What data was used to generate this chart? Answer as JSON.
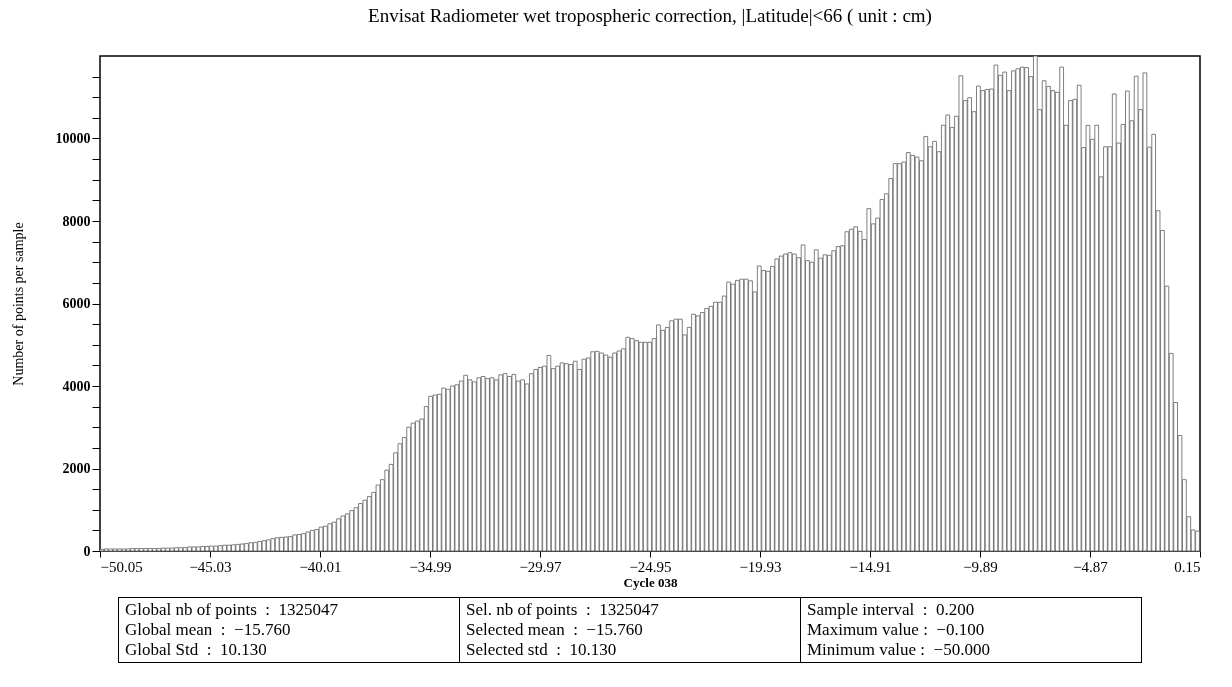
{
  "chart_data": {
    "type": "histogram",
    "title": "Envisat Radiometer wet tropospheric correction, |Latitude|<66  ( unit : cm)",
    "xlabel": "Cycle 038",
    "ylabel": "Number of points per sample",
    "color": "#606060",
    "bins": [
      -50.05,
      -49.85,
      -49.65,
      -49.45,
      -49.25,
      -49.05,
      -48.85,
      -48.65,
      -48.45,
      -48.25,
      -48.05,
      -47.85,
      -47.65,
      -47.45,
      -47.25,
      -47.05,
      -46.85,
      -46.65,
      -46.45,
      -46.25,
      -46.05,
      -45.85,
      -45.65,
      -45.45,
      -45.25,
      -45.05,
      -44.85,
      -44.65,
      -44.45,
      -44.25,
      -44.05,
      -43.85,
      -43.65,
      -43.45,
      -43.25,
      -43.05,
      -42.85,
      -42.65,
      -42.45,
      -42.25,
      -42.05,
      -41.85,
      -41.65,
      -41.45,
      -41.25,
      -41.05,
      -40.85,
      -40.65,
      -40.45,
      -40.25,
      -40.05,
      -39.85,
      -39.65,
      -39.45,
      -39.25,
      -39.05,
      -38.85,
      -38.65,
      -38.45,
      -38.25,
      -38.05,
      -37.85,
      -37.65,
      -37.45,
      -37.25,
      -37.05,
      -36.85,
      -36.65,
      -36.45,
      -36.25,
      -36.05,
      -35.85,
      -35.65,
      -35.45,
      -35.25,
      -35.05,
      -34.85,
      -34.65,
      -34.45,
      -34.25,
      -34.05,
      -33.85,
      -33.65,
      -33.45,
      -33.25,
      -33.05,
      -32.85,
      -32.65,
      -32.45,
      -32.25,
      -32.05,
      -31.85,
      -31.65,
      -31.45,
      -31.25,
      -31.05,
      -30.85,
      -30.65,
      -30.45,
      -30.25,
      -30.05,
      -29.85,
      -29.65,
      -29.45,
      -29.25,
      -29.05,
      -28.85,
      -28.65,
      -28.45,
      -28.25,
      -28.05,
      -27.85,
      -27.65,
      -27.45,
      -27.25,
      -27.05,
      -26.85,
      -26.65,
      -26.45,
      -26.25,
      -26.05,
      -25.85,
      -25.65,
      -25.45,
      -25.25,
      -25.05,
      -24.85,
      -24.65,
      -24.45,
      -24.25,
      -24.05,
      -23.85,
      -23.65,
      -23.45,
      -23.25,
      -23.05,
      -22.85,
      -22.65,
      -22.45,
      -22.25,
      -22.05,
      -21.85,
      -21.65,
      -21.45,
      -21.25,
      -21.05,
      -20.85,
      -20.65,
      -20.45,
      -20.25,
      -20.05,
      -19.85,
      -19.65,
      -19.45,
      -19.25,
      -19.05,
      -18.85,
      -18.65,
      -18.45,
      -18.25,
      -18.05,
      -17.85,
      -17.65,
      -17.45,
      -17.25,
      -17.05,
      -16.85,
      -16.65,
      -16.45,
      -16.25,
      -16.05,
      -15.85,
      -15.65,
      -15.45,
      -15.25,
      -15.05,
      -14.85,
      -14.65,
      -14.45,
      -14.25,
      -14.05,
      -13.85,
      -13.65,
      -13.45,
      -13.25,
      -13.05,
      -12.85,
      -12.65,
      -12.45,
      -12.25,
      -12.05,
      -11.85,
      -11.65,
      -11.45,
      -11.25,
      -11.05,
      -10.85,
      -10.65,
      -10.45,
      -10.25,
      -10.05,
      -9.85,
      -9.65,
      -9.45,
      -9.25,
      -9.05,
      -8.85,
      -8.65,
      -8.45,
      -8.25,
      -8.05,
      -7.85,
      -7.65,
      -7.45,
      -7.25,
      -7.05,
      -6.85,
      -6.65,
      -6.45,
      -6.25,
      -6.05,
      -5.85,
      -5.65,
      -5.45,
      -5.25,
      -5.05,
      -4.85,
      -4.65,
      -4.45,
      -4.25,
      -4.05,
      -3.85,
      -3.65,
      -3.45,
      -3.25,
      -3.05,
      -2.85,
      -2.65,
      -2.45,
      -2.25,
      -2.05,
      -1.85,
      -1.65,
      -1.45,
      -1.25,
      -1.05,
      -0.85,
      -0.65,
      -0.45,
      -0.25,
      -0.05,
      0.15
    ],
    "values": [
      40,
      50,
      50,
      50,
      50,
      50,
      50,
      60,
      60,
      60,
      60,
      60,
      60,
      60,
      70,
      70,
      70,
      80,
      80,
      80,
      100,
      100,
      100,
      110,
      110,
      120,
      120,
      130,
      140,
      140,
      150,
      160,
      170,
      180,
      200,
      210,
      230,
      250,
      270,
      300,
      320,
      330,
      340,
      350,
      390,
      400,
      420,
      460,
      500,
      520,
      580,
      600,
      660,
      700,
      780,
      850,
      900,
      980,
      1050,
      1150,
      1230,
      1320,
      1420,
      1600,
      1730,
      1960,
      2100,
      2380,
      2600,
      2750,
      3000,
      3100,
      3150,
      3200,
      3500,
      3750,
      3780,
      3800,
      3950,
      3920,
      4000,
      4030,
      4120,
      4260,
      4150,
      4100,
      4200,
      4230,
      4180,
      4200,
      4150,
      4270,
      4300,
      4230,
      4280,
      4120,
      4150,
      4050,
      4300,
      4400,
      4450,
      4480,
      4740,
      4420,
      4480,
      4560,
      4540,
      4520,
      4600,
      4400,
      4650,
      4680,
      4830,
      4840,
      4800,
      4750,
      4700,
      4800,
      4850,
      4900,
      5180,
      5150,
      5100,
      5060,
      5060,
      5060,
      5150,
      5480,
      5350,
      5420,
      5580,
      5620,
      5620,
      5240,
      5420,
      5740,
      5700,
      5780,
      5880,
      5930,
      6030,
      6030,
      6180,
      6520,
      6470,
      6560,
      6590,
      6590,
      6550,
      6280,
      6910,
      6800,
      6780,
      6900,
      7080,
      7150,
      7200,
      7230,
      7200,
      7110,
      7420,
      7040,
      7000,
      7300,
      7100,
      7180,
      7170,
      7280,
      7380,
      7400,
      7740,
      7800,
      7860,
      7750,
      7550,
      8300,
      7930,
      8070,
      8520,
      8660,
      9030,
      9390,
      9390,
      9430,
      9660,
      9590,
      9550,
      9460,
      10050,
      9800,
      9930,
      9680,
      10320,
      10570,
      10270,
      10540,
      11520,
      10920,
      10990,
      10650,
      11270,
      11160,
      11190,
      11200,
      11780,
      11530,
      11610,
      11160,
      11640,
      11690,
      11730,
      11720,
      11500,
      12000,
      10700,
      11400,
      11260,
      11160,
      11120,
      11730,
      10320,
      10920,
      10950,
      11290,
      9780,
      10320,
      9980,
      10320,
      9070,
      9800,
      9800,
      11080,
      9890,
      10340,
      11150,
      10430,
      11510,
      10700,
      11590,
      9790,
      10100,
      8250,
      7770,
      6420,
      4790,
      3600,
      2800,
      1730,
      830,
      510,
      480
    ],
    "xlim": [
      -50.05,
      0.15
    ],
    "xticks": [
      -50.05,
      -45.03,
      -40.01,
      -34.99,
      -29.97,
      -24.95,
      -19.93,
      -14.91,
      -9.89,
      -4.87,
      0.15
    ],
    "ylim": [
      0,
      12000
    ],
    "yticks": [
      0,
      {
        "value": 500,
        "label": null
      },
      {
        "value": 1000,
        "label": null
      },
      {
        "value": 1500,
        "label": null
      },
      2000,
      {
        "value": 2500,
        "label": null
      },
      {
        "value": 3000,
        "label": null
      },
      {
        "value": 3500,
        "label": null
      },
      4000,
      {
        "value": 4500,
        "label": null
      },
      {
        "value": 5000,
        "label": null
      },
      {
        "value": 5500,
        "label": null
      },
      6000,
      {
        "value": 6500,
        "label": null
      },
      {
        "value": 7000,
        "label": null
      },
      {
        "value": 7500,
        "label": null
      },
      8000,
      {
        "value": 8500,
        "label": null
      },
      {
        "value": 9000,
        "label": null
      },
      {
        "value": 9500,
        "label": null
      },
      10000,
      {
        "value": 10500,
        "label": null
      },
      {
        "value": 11000,
        "label": null
      },
      {
        "value": 11500,
        "label": null
      }
    ],
    "annotations": [
      "Global nb of points  :  1325047",
      "Global mean  :  −15.760",
      "Global Std  :  10.130",
      "Sel. nb of points  :  1325047",
      "Selected mean  :  −15.760",
      "Selected std  :  10.130",
      "Sample interval  :  0.200",
      "Maximum value :  −0.100",
      "Minimum value :  −50.000"
    ]
  }
}
